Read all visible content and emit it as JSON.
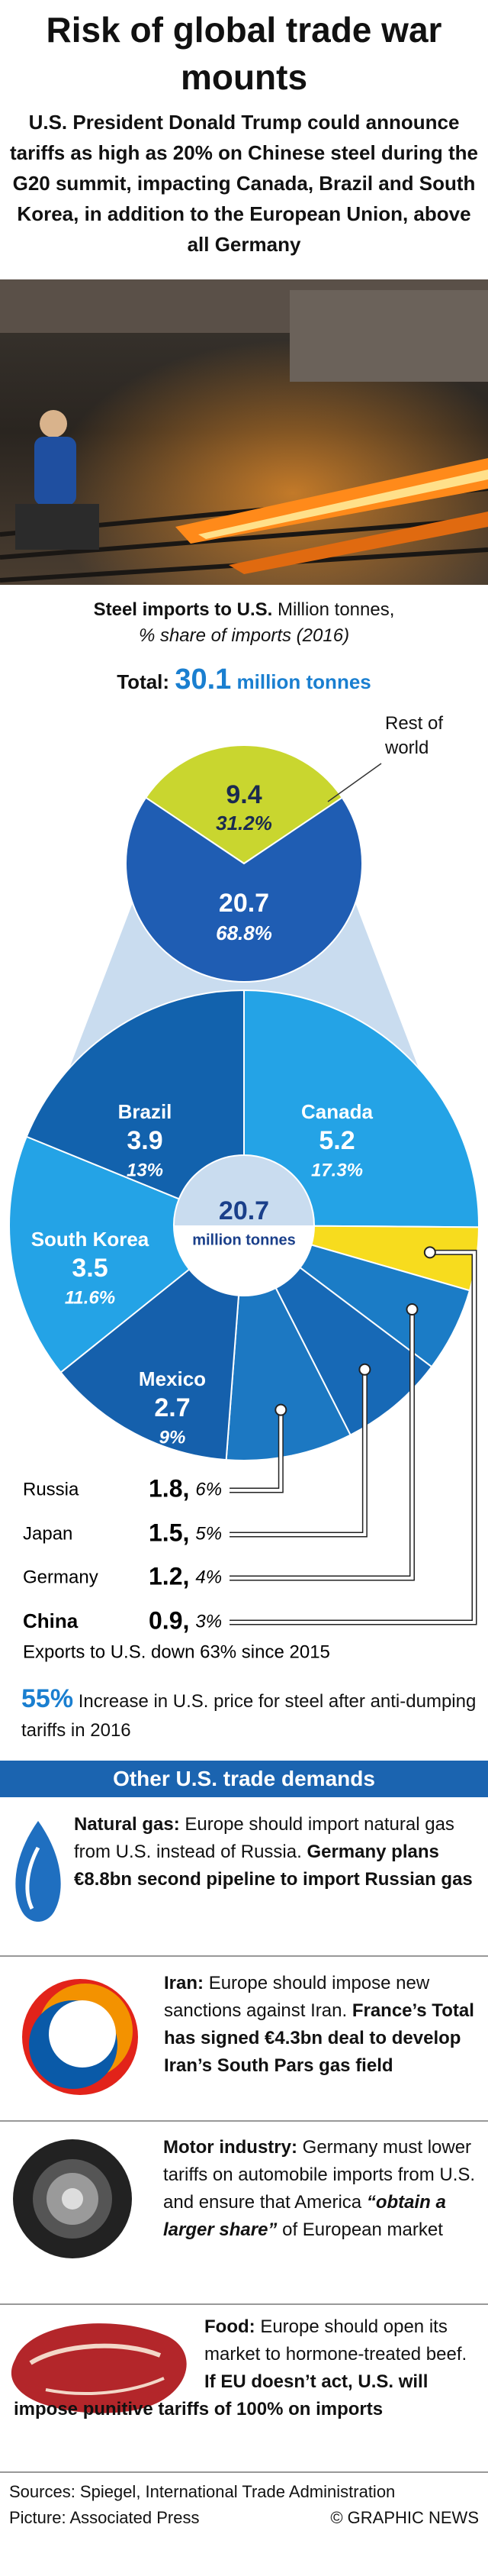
{
  "header": {
    "title": "Risk of global trade war mounts",
    "subtitle": "U.S. President Donald Trump could announce tariffs as high as 20% on Chinese steel during the G20 summit, impacting Canada, Brazil and South Korea, in addition to the European Union, above all Germany"
  },
  "chart_data": [
    {
      "type": "pie",
      "title": "Steel imports to U.S.",
      "unit": "Million tonnes,",
      "subtitle": "% share of imports (2016)",
      "total_label": "Total:",
      "total": 30.1,
      "total_unit": "million tonnes",
      "categories": [
        "Rest of world",
        null
      ],
      "values": [
        9.4,
        20.7
      ],
      "shares": [
        31.2,
        68.8
      ],
      "share_labels": [
        "31.2%",
        "68.8%"
      ],
      "colors": [
        "#c9d62f",
        "#1f5db3"
      ]
    },
    {
      "type": "donut",
      "center_value": 20.7,
      "center_label": "million tonnes",
      "categories": [
        "Canada",
        "China",
        "Germany",
        "Japan",
        "Russia",
        "Mexico",
        "South Korea",
        "Brazil"
      ],
      "values": [
        5.2,
        0.9,
        1.2,
        1.5,
        1.8,
        2.7,
        3.5,
        3.9
      ],
      "value_labels": [
        "5.2",
        "0.9,",
        "1.2,",
        "1.5,",
        "1.8,",
        "2.7",
        "3.5",
        "3.9"
      ],
      "shares": [
        17.3,
        3,
        4,
        5,
        6,
        9,
        11.6,
        13
      ],
      "share_labels": [
        "17.3%",
        "3%",
        "4%",
        "5%",
        "6%",
        "9%",
        "11.6%",
        "13%"
      ],
      "colors": [
        "#24a3e6",
        "#f7dc1e",
        "#1b7cc6",
        "#1769b6",
        "#1c78c2",
        "#1560ac",
        "#24a3e6",
        "#1262ad"
      ],
      "note": "Exports to U.S. down 63% since 2015"
    }
  ],
  "stat": {
    "value": 55,
    "value_label": "55%",
    "text": "Increase in U.S. price for steel after anti-dumping tariffs in 2016"
  },
  "demands": {
    "title": "Other U.S. trade demands",
    "items": [
      {
        "parts": [
          "Natural gas:",
          "Europe should import natural gas from U.S. instead of Russia.",
          "Germany plans €8.8bn second pipeline to import Russian gas"
        ]
      },
      {
        "parts": [
          "Iran:",
          "Europe should impose new sanctions against Iran.",
          "France’s Total has signed €4.3bn deal to develop Iran’s South Pars gas field"
        ]
      },
      {
        "parts": [
          "Motor industry:",
          "Germany must lower tariffs on automobile imports from U.S. and ensure that America",
          "“obtain a larger share”",
          "of European market"
        ]
      },
      {
        "parts": [
          "Food:",
          "Europe should open its market to hormone-treated beef.",
          "If EU doesn’t act, U.S. will impose punitive tariffs of 100% on imports"
        ]
      }
    ]
  },
  "footer": {
    "sources": "Sources: Spiegel, International Trade Administration",
    "picture": "Picture: Associated Press",
    "credit": "© GRAPHIC NEWS"
  }
}
